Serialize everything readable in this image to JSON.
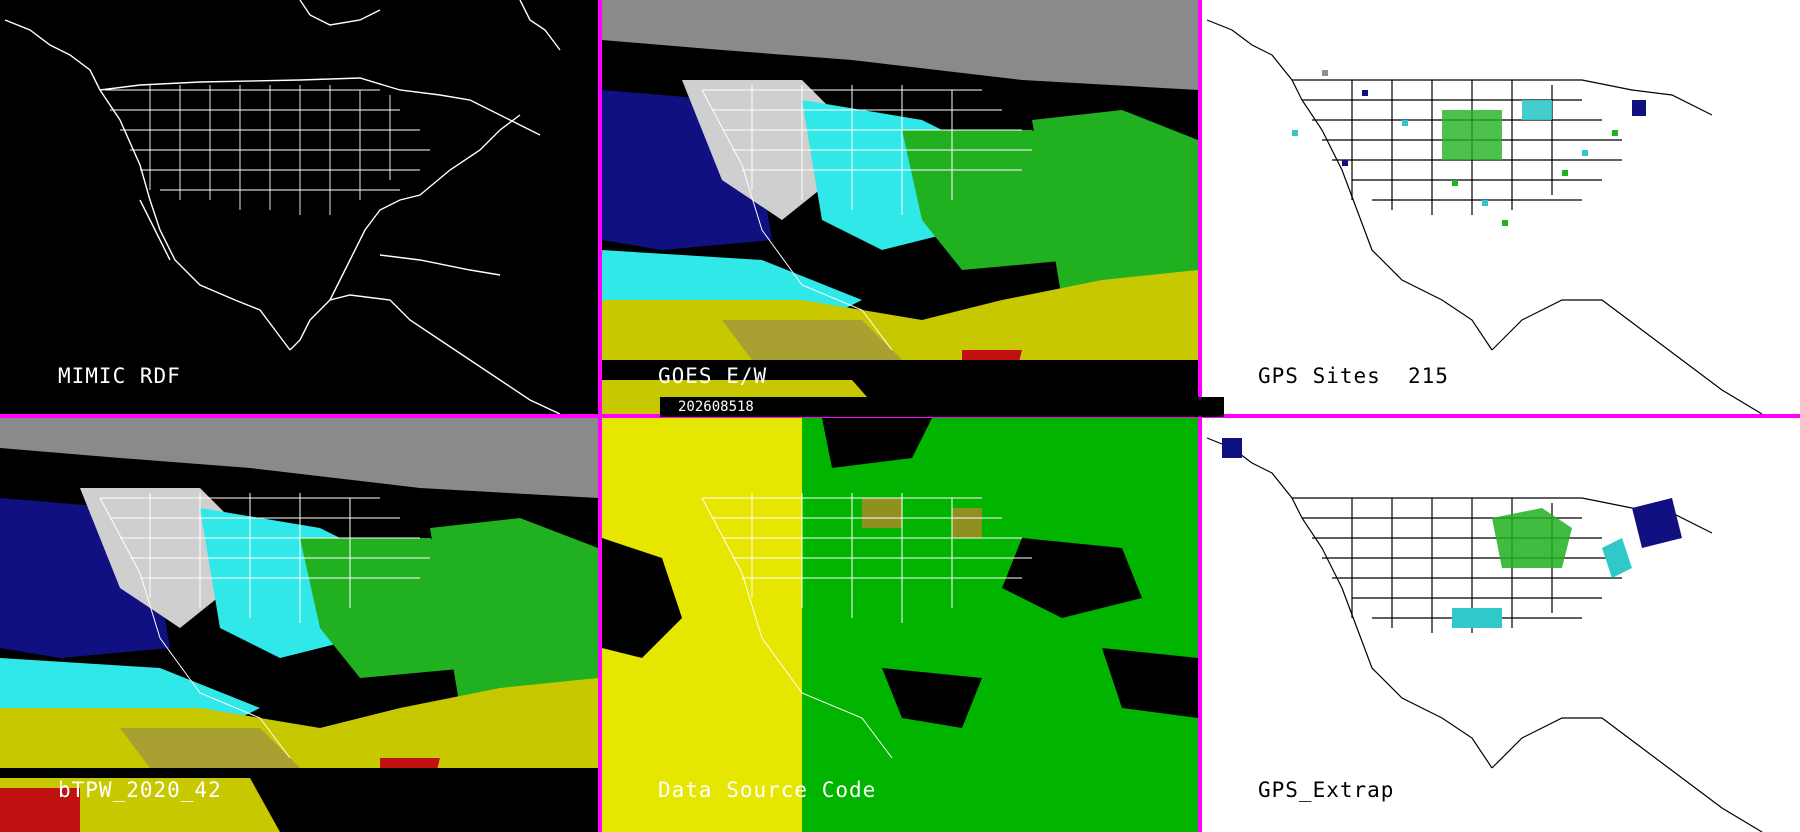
{
  "panels": [
    {
      "id": "p1",
      "label": "MIMIC RDF",
      "theme": "dark"
    },
    {
      "id": "p2",
      "label": "GOES E/W",
      "theme": "dark"
    },
    {
      "id": "p3",
      "label": "GPS Sites",
      "count": "215",
      "theme": "light"
    },
    {
      "id": "p4",
      "label": "bTPW_2020_42",
      "theme": "dark"
    },
    {
      "id": "p5",
      "label": "Data Source Code",
      "theme": "dark"
    },
    {
      "id": "p6",
      "label": "GPS_Extrap",
      "theme": "light"
    }
  ],
  "timestamp": "202608518",
  "colors": {
    "divider": "#ff00ff",
    "map_line_dark": "#ffffff",
    "map_line_light": "#000000",
    "tpw_gray": "#bdbdbd",
    "tpw_navy": "#101080",
    "tpw_cyan": "#30e8e8",
    "tpw_green": "#20b020",
    "tpw_yellow": "#e0e000",
    "tpw_olive": "#a8a030",
    "tpw_red": "#c01010",
    "code_yellow": "#e6e600",
    "code_green": "#00b400",
    "code_olive": "#909020"
  }
}
